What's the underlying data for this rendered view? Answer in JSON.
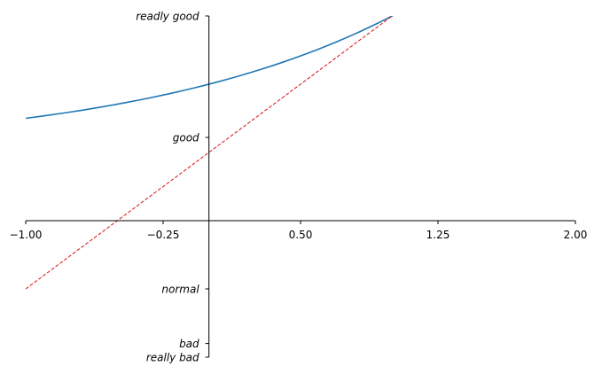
{
  "chart_data": {
    "type": "line",
    "title": "",
    "xlabel": "",
    "ylabel": "",
    "xlim": [
      -1,
      2
    ],
    "ylim": [
      -2,
      3
    ],
    "grid": false,
    "spines": "centered at origin",
    "xticks": [
      -1.0,
      -0.25,
      0.5,
      1.25,
      2.0
    ],
    "xtick_labels": [
      "−1.00",
      "−0.25",
      "0.50",
      "1.25",
      "2.00"
    ],
    "yticks": [
      -2,
      -1.8,
      -1,
      1.22,
      3
    ],
    "ytick_labels": [
      "really bad",
      "bad",
      "normal",
      "good",
      "readly good"
    ],
    "series": [
      {
        "formula": "y = 2^x + 1",
        "color": "#1f77b4",
        "style": "solid",
        "x_range": [
          -1,
          2
        ],
        "samples": 50
      },
      {
        "formula": "y = 2x + 1",
        "color": "#d62728",
        "style": "dashed",
        "x_range": [
          -1,
          2
        ],
        "samples": 50
      }
    ]
  }
}
